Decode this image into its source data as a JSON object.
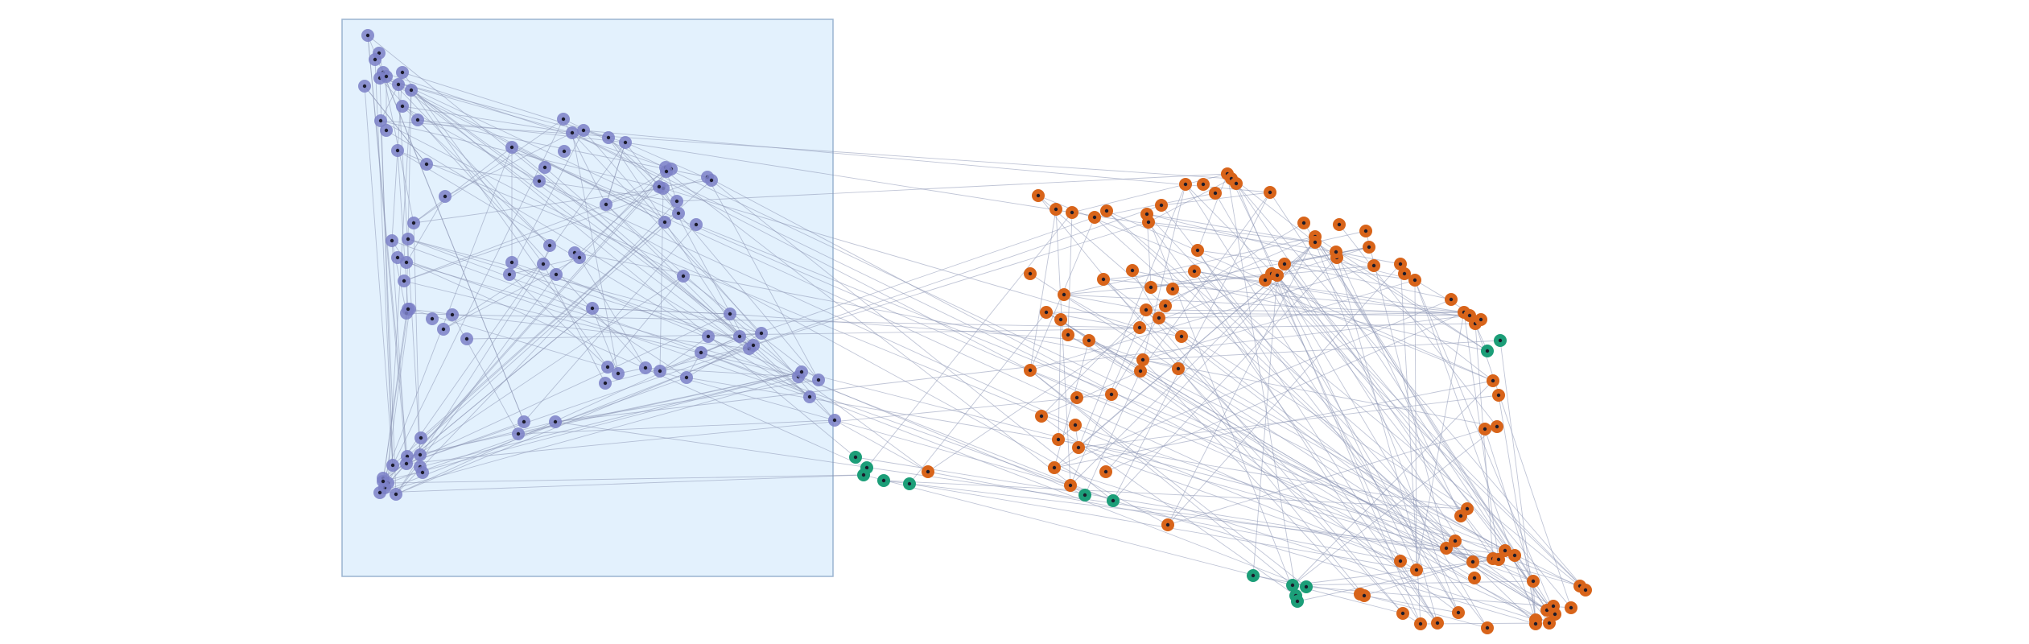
{
  "diagram": {
    "type": "network-graph",
    "labels_visible": false,
    "colors": {
      "selection_fill": "#e3f1fd",
      "selection_stroke": "#9ab4d0",
      "edge": "#8d95b4",
      "group_purple": "#7b80c7",
      "group_orange": "#d8641a",
      "group_green": "#1c9e78",
      "node_center": "#1b1b2b"
    },
    "groups": [
      {
        "id": "purple",
        "color": "#7b80c7"
      },
      {
        "id": "orange",
        "color": "#d8641a"
      },
      {
        "id": "green",
        "color": "#1c9e78"
      }
    ]
  }
}
